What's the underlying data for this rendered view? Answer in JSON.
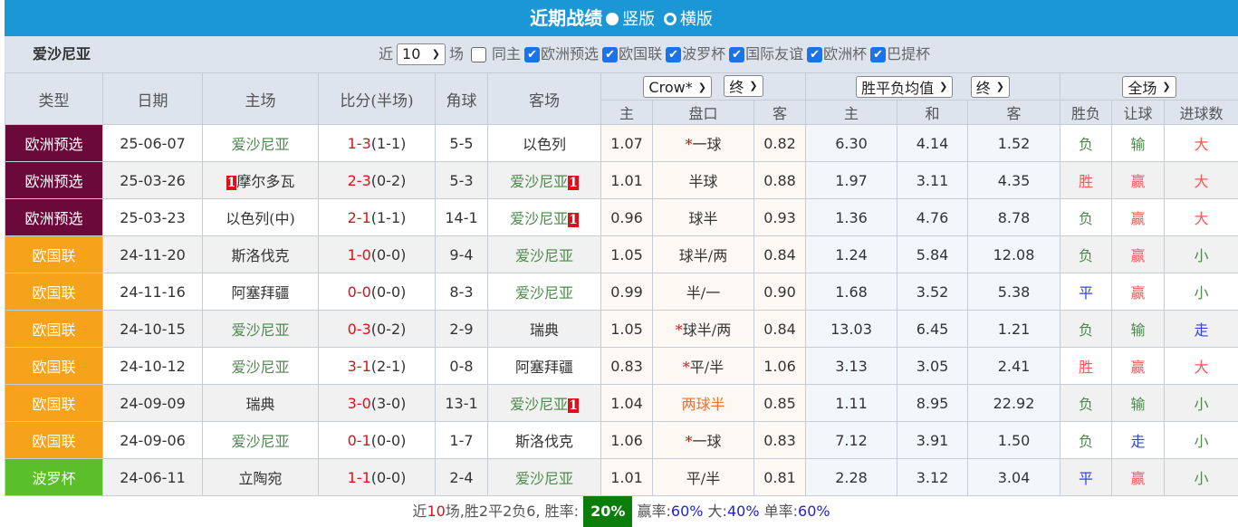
{
  "title": "近期战绩",
  "layout_options": [
    "竖版",
    "横版"
  ],
  "layout_selected": "竖版",
  "filter": {
    "team": "爱沙尼亚",
    "near_label": "近",
    "count": "10",
    "count_unit": "场",
    "same_home": {
      "label": "同主",
      "checked": false
    },
    "competitions": [
      {
        "label": "欧洲预选",
        "checked": true
      },
      {
        "label": "欧国联",
        "checked": true
      },
      {
        "label": "波罗杯",
        "checked": true
      },
      {
        "label": "国际友谊",
        "checked": true
      },
      {
        "label": "欧洲杯",
        "checked": true
      },
      {
        "label": "巴提杯",
        "checked": true
      }
    ]
  },
  "headers": {
    "type": "类型",
    "date": "日期",
    "home": "主场",
    "score": "比分(半场)",
    "corners": "角球",
    "away": "客场",
    "company": "Crow*",
    "ah_stage": "终",
    "eu_type": "胜平负均值",
    "eu_stage": "终",
    "period": "全场",
    "ah_home": "主",
    "ah_line": "盘口",
    "ah_away": "客",
    "eu_home": "主",
    "eu_draw": "和",
    "eu_away": "客",
    "res": "胜负",
    "handicap": "让球",
    "goals": "进球数"
  },
  "colors": {
    "欧洲预选": "#6b0a3a",
    "欧国联": "#f7a21b",
    "波罗杯": "#5bbf2a",
    "title_bar": "#1c97d6"
  },
  "rows": [
    {
      "type": "欧洲预选",
      "date": "25-06-07",
      "home": "爱沙尼亚",
      "home_rc": "",
      "score_ft": "1-3",
      "score_ht": "(1-1)",
      "corners": "5-5",
      "away": "以色列",
      "away_rc": "",
      "ah_h": "1.07",
      "ah_star": "*",
      "ah_line": "一球",
      "ah_a": "0.82",
      "eu_h": "6.30",
      "eu_d": "4.14",
      "eu_a": "1.52",
      "res": "负",
      "hc": "输",
      "goals": "大"
    },
    {
      "type": "欧洲预选",
      "date": "25-03-26",
      "home": "摩尔多瓦",
      "home_rc": "1",
      "score_ft": "2-3",
      "score_ht": "(0-2)",
      "corners": "5-3",
      "away": "爱沙尼亚",
      "away_rc": "1",
      "ah_h": "1.01",
      "ah_star": "",
      "ah_line": "半球",
      "ah_a": "0.88",
      "eu_h": "1.97",
      "eu_d": "3.11",
      "eu_a": "4.35",
      "res": "胜",
      "hc": "赢",
      "goals": "大"
    },
    {
      "type": "欧洲预选",
      "date": "25-03-23",
      "home": "以色列(中)",
      "home_rc": "",
      "score_ft": "2-1",
      "score_ht": "(1-1)",
      "corners": "14-1",
      "away": "爱沙尼亚",
      "away_rc": "1",
      "ah_h": "0.96",
      "ah_star": "",
      "ah_line": "球半",
      "ah_a": "0.93",
      "eu_h": "1.36",
      "eu_d": "4.76",
      "eu_a": "8.78",
      "res": "负",
      "hc": "赢",
      "goals": "大"
    },
    {
      "type": "欧国联",
      "date": "24-11-20",
      "home": "斯洛伐克",
      "home_rc": "",
      "score_ft": "1-0",
      "score_ht": "(0-0)",
      "corners": "9-4",
      "away": "爱沙尼亚",
      "away_rc": "",
      "ah_h": "1.05",
      "ah_star": "",
      "ah_line": "球半/两",
      "ah_a": "0.84",
      "eu_h": "1.24",
      "eu_d": "5.84",
      "eu_a": "12.08",
      "res": "负",
      "hc": "赢",
      "goals": "小"
    },
    {
      "type": "欧国联",
      "date": "24-11-16",
      "home": "阿塞拜疆",
      "home_rc": "",
      "score_ft": "0-0",
      "score_ht": "(0-0)",
      "corners": "8-3",
      "away": "爱沙尼亚",
      "away_rc": "",
      "ah_h": "0.99",
      "ah_star": "",
      "ah_line": "半/一",
      "ah_a": "0.90",
      "eu_h": "1.68",
      "eu_d": "3.52",
      "eu_a": "5.38",
      "res": "平",
      "hc": "赢",
      "goals": "小"
    },
    {
      "type": "欧国联",
      "date": "24-10-15",
      "home": "爱沙尼亚",
      "home_rc": "",
      "score_ft": "0-3",
      "score_ht": "(0-2)",
      "corners": "2-9",
      "away": "瑞典",
      "away_rc": "",
      "ah_h": "1.05",
      "ah_star": "*",
      "ah_line": "球半/两",
      "ah_a": "0.84",
      "eu_h": "13.03",
      "eu_d": "6.45",
      "eu_a": "1.21",
      "res": "负",
      "hc": "输",
      "goals": "走"
    },
    {
      "type": "欧国联",
      "date": "24-10-12",
      "home": "爱沙尼亚",
      "home_rc": "",
      "score_ft": "3-1",
      "score_ht": "(2-1)",
      "corners": "0-8",
      "away": "阿塞拜疆",
      "away_rc": "",
      "ah_h": "0.83",
      "ah_star": "*",
      "ah_line": "平/半",
      "ah_a": "1.06",
      "eu_h": "3.13",
      "eu_d": "3.05",
      "eu_a": "2.41",
      "res": "胜",
      "hc": "赢",
      "goals": "大"
    },
    {
      "type": "欧国联",
      "date": "24-09-09",
      "home": "瑞典",
      "home_rc": "",
      "score_ft": "3-0",
      "score_ht": "(3-0)",
      "corners": "13-1",
      "away": "爱沙尼亚",
      "away_rc": "1",
      "ah_h": "1.04",
      "ah_star": "",
      "ah_line": "两球半",
      "ah_line_hl": true,
      "ah_a": "0.85",
      "eu_h": "1.11",
      "eu_d": "8.95",
      "eu_a": "22.92",
      "res": "负",
      "hc": "输",
      "goals": "小"
    },
    {
      "type": "欧国联",
      "date": "24-09-06",
      "home": "爱沙尼亚",
      "home_rc": "",
      "score_ft": "0-1",
      "score_ht": "(0-0)",
      "corners": "1-7",
      "away": "斯洛伐克",
      "away_rc": "",
      "ah_h": "1.06",
      "ah_star": "*",
      "ah_line": "一球",
      "ah_a": "0.83",
      "eu_h": "7.12",
      "eu_d": "3.91",
      "eu_a": "1.50",
      "res": "负",
      "hc": "走",
      "goals": "小"
    },
    {
      "type": "波罗杯",
      "date": "24-06-11",
      "home": "立陶宛",
      "home_rc": "",
      "score_ft": "1-1",
      "score_ht": "(0-0)",
      "corners": "2-4",
      "away": "爱沙尼亚",
      "away_rc": "",
      "ah_h": "1.01",
      "ah_star": "",
      "ah_line": "平/半",
      "ah_a": "0.81",
      "eu_h": "2.28",
      "eu_d": "3.12",
      "eu_a": "3.04",
      "res": "平",
      "hc": "赢",
      "goals": "小"
    }
  ],
  "summary": {
    "p1": "近",
    "n": "10",
    "p2": "场,胜2平2负6, 胜率:",
    "win_rate": "20%",
    "p3": "赢率:",
    "hc_rate": "60%",
    "p4": "大:",
    "big_rate": "40%",
    "p5": "单率:",
    "odd_rate": "60%"
  }
}
